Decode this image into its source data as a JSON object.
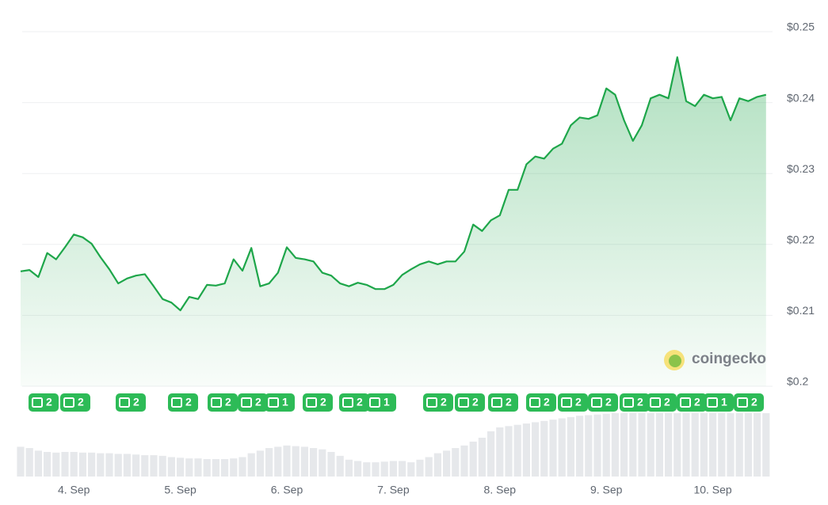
{
  "chart_data": {
    "type": "line",
    "categories": [
      null,
      null,
      null,
      null,
      null,
      null,
      "4. Sep",
      null,
      null,
      null,
      null,
      null,
      null,
      null,
      null,
      null,
      null,
      null,
      "5. Sep",
      null,
      null,
      null,
      null,
      null,
      null,
      null,
      null,
      null,
      null,
      null,
      "6. Sep",
      null,
      null,
      null,
      null,
      null,
      null,
      null,
      null,
      null,
      null,
      null,
      "7. Sep",
      null,
      null,
      null,
      null,
      null,
      null,
      null,
      null,
      null,
      null,
      null,
      "8. Sep",
      null,
      null,
      null,
      null,
      null,
      null,
      null,
      null,
      null,
      null,
      null,
      "9. Sep",
      null,
      null,
      null,
      null,
      null,
      null,
      null,
      null,
      null,
      null,
      null,
      "10. Sep",
      null,
      null,
      null,
      null,
      null,
      null
    ],
    "series": [
      {
        "color": "#1ea64a",
        "values": [
          0.2162,
          0.2164,
          0.2154,
          0.2188,
          0.2179,
          0.2196,
          0.2214,
          0.221,
          0.2201,
          0.2182,
          0.2165,
          0.2145,
          0.2152,
          0.2156,
          0.2158,
          0.2141,
          0.2123,
          0.2118,
          0.2107,
          0.2126,
          0.2123,
          0.2143,
          0.2142,
          0.2145,
          0.2179,
          0.2163,
          0.2195,
          0.2141,
          0.2145,
          0.216,
          0.2196,
          0.2181,
          0.2179,
          0.2176,
          0.216,
          0.2156,
          0.2145,
          0.2141,
          0.2146,
          0.2143,
          0.2137,
          0.2137,
          0.2143,
          0.2157,
          0.2165,
          0.2172,
          0.2176,
          0.2172,
          0.2176,
          0.2176,
          0.219,
          0.2228,
          0.2219,
          0.2234,
          0.2241,
          0.2277,
          0.2277,
          0.2313,
          0.2324,
          0.2321,
          0.2335,
          0.2342,
          0.2368,
          0.2379,
          0.2377,
          0.2382,
          0.242,
          0.2411,
          0.2375,
          0.2346,
          0.2368,
          0.2406,
          0.2411,
          0.2406,
          0.2464,
          0.2402,
          0.2395,
          0.2411,
          0.2406,
          0.2408,
          0.2375,
          0.2406,
          0.2402,
          0.2408,
          0.2411
        ]
      }
    ],
    "volume": {
      "color": "#e6e8eb",
      "values": [
        46,
        44,
        40,
        38,
        37,
        38,
        38,
        37,
        37,
        36,
        36,
        35,
        35,
        34,
        33,
        33,
        32,
        30,
        29,
        28,
        28,
        27,
        27,
        27,
        28,
        30,
        36,
        40,
        44,
        46,
        48,
        47,
        46,
        44,
        42,
        38,
        32,
        26,
        24,
        22,
        22,
        23,
        24,
        24,
        22,
        26,
        30,
        36,
        40,
        44,
        48,
        54,
        60,
        70,
        76,
        78,
        80,
        82,
        84,
        86,
        88,
        90,
        92,
        94,
        95,
        96,
        97,
        98,
        98,
        98,
        98,
        98,
        98,
        98,
        98,
        98,
        98,
        98,
        98,
        98,
        98,
        98,
        98,
        98,
        98
      ]
    },
    "events": [
      "2",
      "2",
      "2",
      "2",
      "2",
      "2",
      "1",
      "2",
      "2",
      "1",
      "2",
      "2",
      "2",
      "2",
      "2",
      "2",
      "2",
      "2",
      "2",
      "1",
      "2"
    ],
    "ylim": [
      0.2,
      0.25
    ],
    "yticks": [
      {
        "value": 0.2,
        "label": "$0.2"
      },
      {
        "value": 0.21,
        "label": "$0.21"
      },
      {
        "value": 0.22,
        "label": "$0.22"
      },
      {
        "value": 0.23,
        "label": "$0.23"
      },
      {
        "value": 0.24,
        "label": "$0.24"
      },
      {
        "value": 0.25,
        "label": "$0.25"
      }
    ],
    "grid": true,
    "watermark": "coingecko"
  }
}
